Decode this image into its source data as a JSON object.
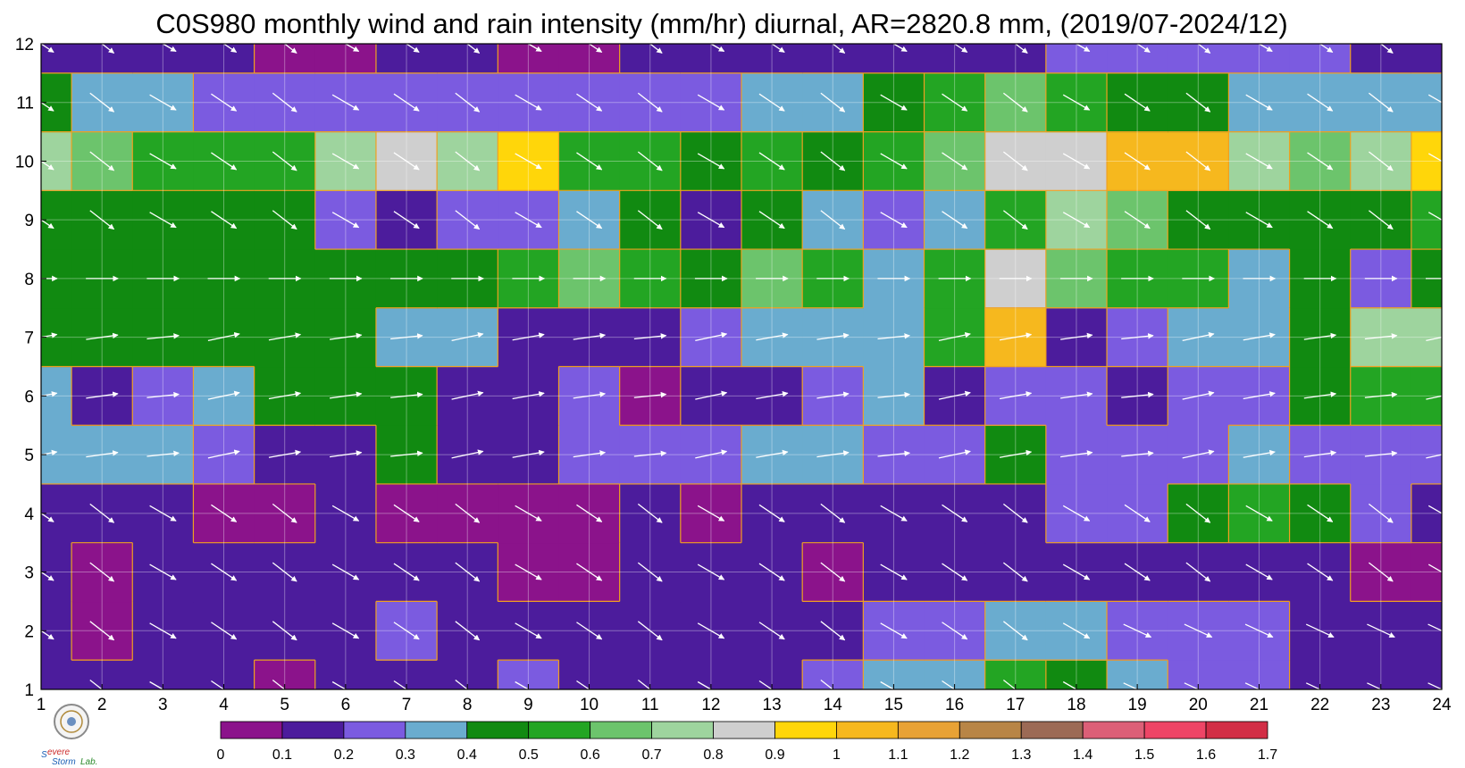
{
  "chart_data": {
    "type": "heatmap",
    "title": "C0S980 monthly wind and rain intensity (mm/hr) diurnal, AR=2820.8 mm, (2019/07-2024/12)",
    "xlabel": "",
    "ylabel": "",
    "x": [
      1,
      2,
      3,
      4,
      5,
      6,
      7,
      8,
      9,
      10,
      11,
      12,
      13,
      14,
      15,
      16,
      17,
      18,
      19,
      20,
      21,
      22,
      23,
      24
    ],
    "y": [
      1,
      2,
      3,
      4,
      5,
      6,
      7,
      8,
      9,
      10,
      11,
      12
    ],
    "xlim": [
      1,
      24
    ],
    "ylim": [
      1,
      12
    ],
    "grid": true,
    "levels": [
      0,
      0.1,
      0.2,
      0.3,
      0.4,
      0.5,
      0.6,
      0.7,
      0.8,
      0.9,
      1,
      1.1,
      1.2,
      1.3,
      1.4,
      1.5,
      1.6,
      1.7
    ],
    "colorbar_labels": [
      "0",
      "0.1",
      "0.2",
      "0.3",
      "0.4",
      "0.5",
      "0.6",
      "0.7",
      "0.8",
      "0.9",
      "1",
      "1.1",
      "1.2",
      "1.3",
      "1.4",
      "1.5",
      "1.6",
      "1.7"
    ],
    "colors": [
      "#8b138b",
      "#4c1c9c",
      "#7b5be0",
      "#6aaccf",
      "#118a11",
      "#23a523",
      "#6cc46c",
      "#9ed49e",
      "#cfcfcf",
      "#ffd60a",
      "#f6b81e",
      "#e8a235",
      "#b88546",
      "#9c6a55",
      "#dc5f77",
      "#ee4566",
      "#d22e46"
    ],
    "rain_values": [
      [
        0.1,
        0.1,
        0.1,
        0.1,
        0.05,
        0.1,
        0.1,
        0.1,
        0.25,
        0.15,
        0.1,
        0.1,
        0.15,
        0.2,
        0.3,
        0.35,
        0.5,
        0.4,
        0.3,
        0.2,
        0.2,
        0.15,
        0.15,
        0.15
      ],
      [
        0.15,
        0.05,
        0.15,
        0.15,
        0.15,
        0.15,
        0.25,
        0.15,
        0.15,
        0.15,
        0.15,
        0.15,
        0.15,
        0.15,
        0.25,
        0.25,
        0.3,
        0.3,
        0.25,
        0.25,
        0.2,
        0.15,
        0.15,
        0.15
      ],
      [
        0.15,
        0.05,
        0.15,
        0.15,
        0.15,
        0.15,
        0.15,
        0.15,
        0.05,
        0.05,
        0.15,
        0.15,
        0.15,
        0.05,
        0.15,
        0.15,
        0.15,
        0.15,
        0.15,
        0.15,
        0.15,
        0.15,
        0.05,
        0.05
      ],
      [
        0.15,
        0.15,
        0.15,
        0.05,
        0.05,
        0.15,
        0.05,
        0.05,
        0.05,
        0.05,
        0.15,
        0.05,
        0.15,
        0.15,
        0.15,
        0.15,
        0.15,
        0.2,
        0.25,
        0.45,
        0.55,
        0.45,
        0.2,
        0.15
      ],
      [
        0.35,
        0.35,
        0.35,
        0.25,
        0.15,
        0.15,
        0.4,
        0.15,
        0.15,
        0.25,
        0.25,
        0.25,
        0.35,
        0.35,
        0.25,
        0.25,
        0.45,
        0.25,
        0.25,
        0.25,
        0.35,
        0.25,
        0.2,
        0.2
      ],
      [
        0.3,
        0.15,
        0.25,
        0.35,
        0.45,
        0.45,
        0.45,
        0.15,
        0.15,
        0.2,
        0.05,
        0.15,
        0.15,
        0.25,
        0.35,
        0.15,
        0.25,
        0.25,
        0.15,
        0.25,
        0.25,
        0.45,
        0.55,
        0.5
      ],
      [
        0.45,
        0.45,
        0.45,
        0.45,
        0.45,
        0.45,
        0.35,
        0.35,
        0.15,
        0.15,
        0.15,
        0.25,
        0.35,
        0.35,
        0.35,
        0.55,
        1.0,
        0.15,
        0.25,
        0.3,
        0.3,
        0.45,
        0.7,
        0.75
      ],
      [
        0.45,
        0.45,
        0.45,
        0.45,
        0.45,
        0.45,
        0.45,
        0.45,
        0.55,
        0.65,
        0.55,
        0.45,
        0.65,
        0.55,
        0.35,
        0.55,
        0.85,
        0.65,
        0.55,
        0.55,
        0.35,
        0.45,
        0.25,
        0.45
      ],
      [
        0.45,
        0.45,
        0.45,
        0.45,
        0.45,
        0.2,
        0.15,
        0.25,
        0.2,
        0.35,
        0.45,
        0.15,
        0.45,
        0.35,
        0.25,
        0.35,
        0.55,
        0.75,
        0.65,
        0.45,
        0.45,
        0.45,
        0.45,
        0.5
      ],
      [
        0.75,
        0.65,
        0.55,
        0.55,
        0.55,
        0.75,
        0.85,
        0.75,
        0.95,
        0.55,
        0.55,
        0.45,
        0.55,
        0.45,
        0.55,
        0.65,
        0.85,
        0.85,
        1.05,
        1.0,
        0.75,
        0.65,
        0.75,
        0.95
      ],
      [
        0.45,
        0.35,
        0.3,
        0.25,
        0.25,
        0.25,
        0.25,
        0.25,
        0.25,
        0.25,
        0.25,
        0.25,
        0.35,
        0.35,
        0.45,
        0.55,
        0.65,
        0.55,
        0.45,
        0.45,
        0.35,
        0.3,
        0.3,
        0.35
      ],
      [
        0.15,
        0.15,
        0.15,
        0.15,
        0.05,
        0.05,
        0.15,
        0.15,
        0.05,
        0.05,
        0.15,
        0.15,
        0.15,
        0.15,
        0.15,
        0.15,
        0.15,
        0.25,
        0.25,
        0.25,
        0.25,
        0.25,
        0.15,
        0.15
      ]
    ]
  }
}
